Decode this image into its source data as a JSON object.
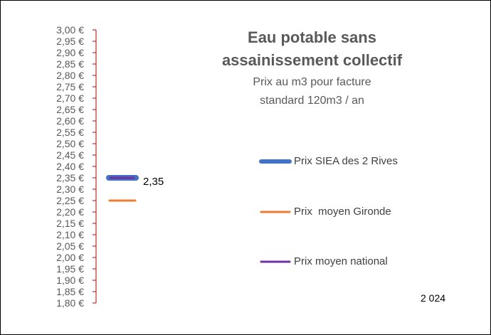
{
  "chart_data": {
    "type": "line",
    "title": "Eau potable sans assainissement collectif",
    "title_lines": [
      "Eau potable sans",
      "assainissement collectif"
    ],
    "subtitle_lines": [
      "Prix au m3 pour facture",
      "standard 120m3 / an"
    ],
    "annotation_year": "2 024",
    "ylim": [
      1.8,
      3.0
    ],
    "y_step": 0.05,
    "y_tick_suffix": " €",
    "grid": false,
    "legend_position": "right",
    "series": [
      {
        "name": "Prix SIEA des 2 Rives",
        "value": 2.35,
        "color": "#4472C4",
        "data_label": "2,35"
      },
      {
        "name": "Prix  moyen Gironde",
        "value": 2.25,
        "color": "#ED7D31"
      },
      {
        "name": "Prix moyen national",
        "value": 2.35,
        "color": "#7030A0"
      }
    ]
  },
  "colors": {
    "axis": "#C00000",
    "tick_label": "#595959",
    "title": "#595959"
  }
}
